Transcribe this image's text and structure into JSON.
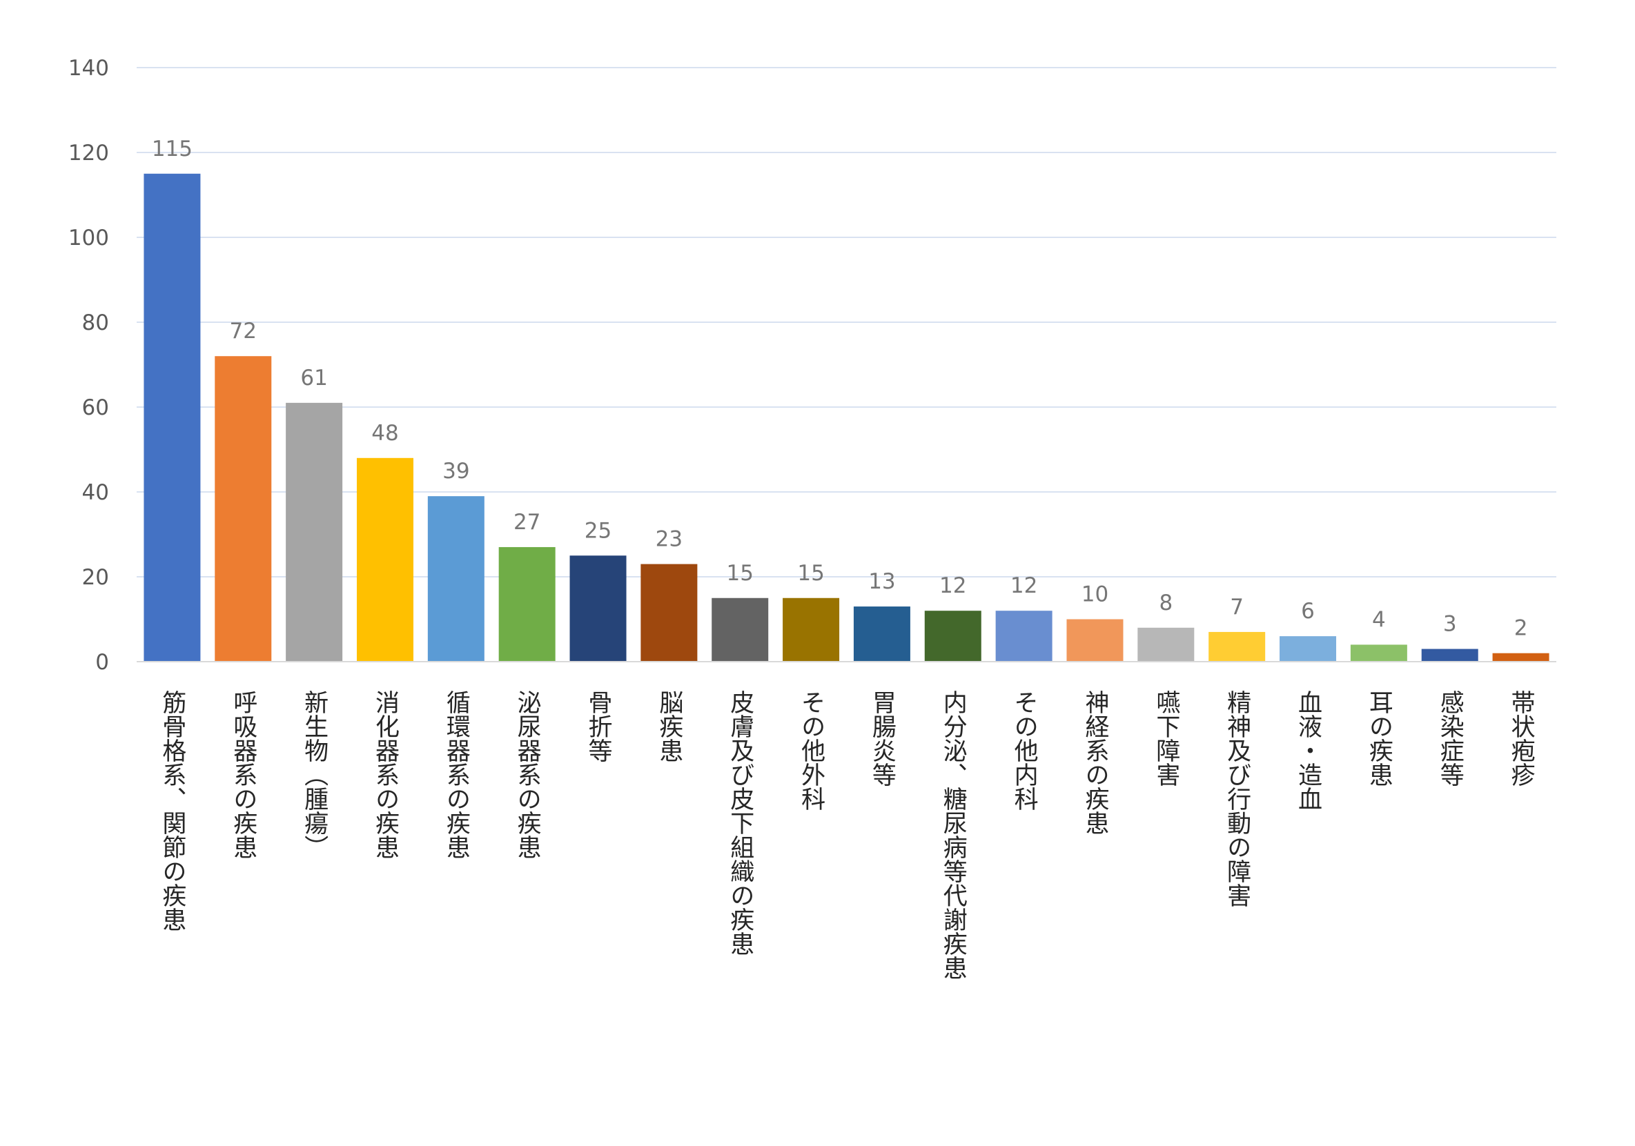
{
  "chart_data": {
    "type": "bar",
    "title": "",
    "xlabel": "",
    "ylabel": "",
    "ylim": [
      0,
      140
    ],
    "yticks": [
      "0",
      "20",
      "40",
      "60",
      "80",
      "100",
      "120",
      "140"
    ],
    "grid": true,
    "legend": "none",
    "categories": [
      "筋骨格系、関節の疾患",
      "呼吸器系の疾患",
      "新生物（腫瘍）",
      "消化器系の疾患",
      "循環器系の疾患",
      "泌尿器系の疾患",
      "骨折等",
      "脳疾患",
      "皮膚及び皮下組織の疾患",
      "その他外科",
      "胃腸炎等",
      "内分泌、糖尿病等代謝疾患",
      "その他内科",
      "神経系の疾患",
      "嚥下障害",
      "精神及び行動の障害",
      "血液・造血",
      "耳の疾患",
      "感染症等",
      "帯状疱疹"
    ],
    "values": [
      115,
      72,
      61,
      48,
      39,
      27,
      25,
      23,
      15,
      15,
      13,
      12,
      12,
      10,
      8,
      7,
      6,
      4,
      3,
      2
    ],
    "value_labels": [
      "115",
      "72",
      "61",
      "48",
      "39",
      "27",
      "25",
      "23",
      "15",
      "15",
      "13",
      "12",
      "12",
      "10",
      "8",
      "7",
      "6",
      "4",
      "3",
      "2"
    ],
    "colors": [
      "#4472C4",
      "#ED7D31",
      "#A5A5A5",
      "#FFC000",
      "#5B9BD5",
      "#70AD47",
      "#264478",
      "#9E480E",
      "#636363",
      "#997300",
      "#255E91",
      "#43682B",
      "#698ED0",
      "#F1975A",
      "#B7B7B7",
      "#FFCD33",
      "#7CAFDD",
      "#8CC168",
      "#335AA1",
      "#D26012"
    ]
  }
}
